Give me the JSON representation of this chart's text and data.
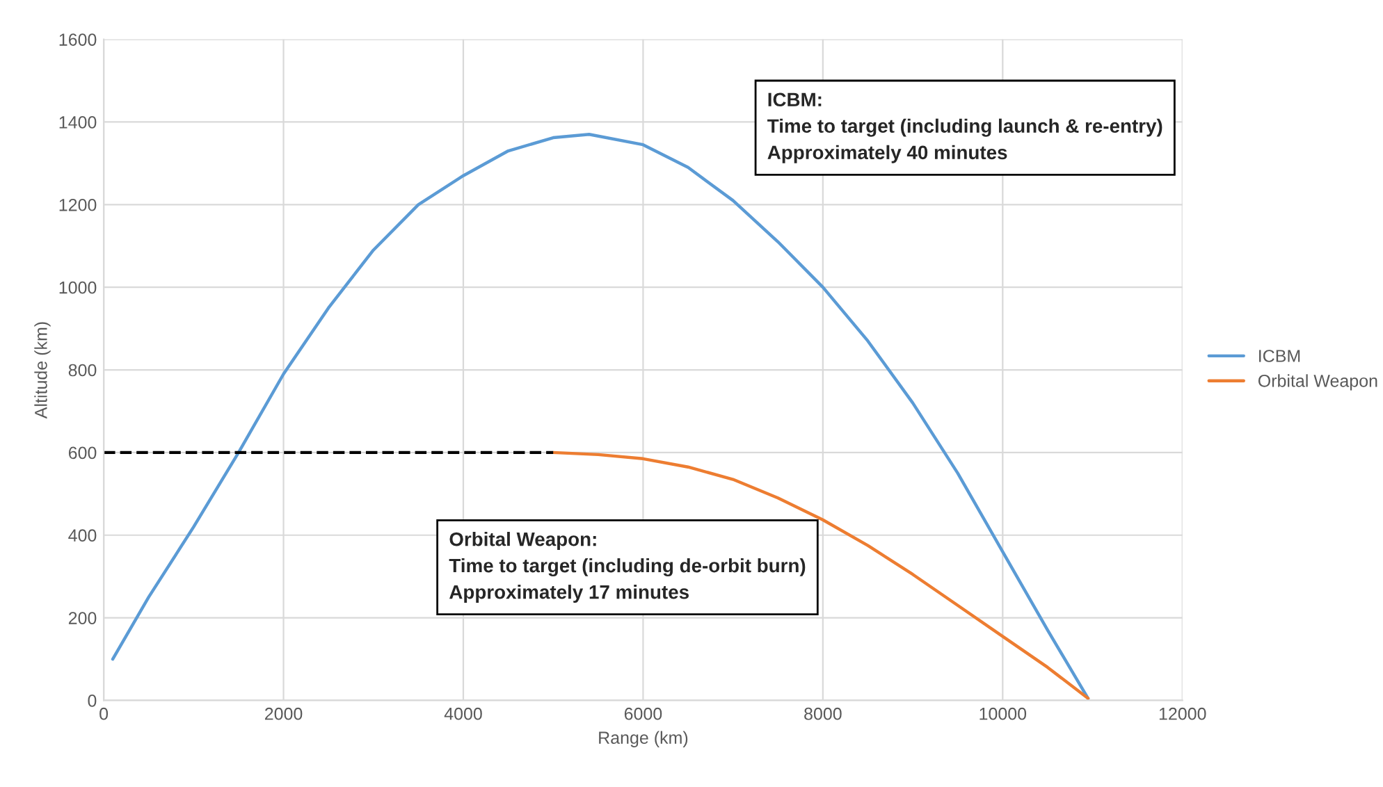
{
  "chart_data": {
    "type": "line",
    "xlabel": "Range (km)",
    "ylabel": "Altitude (km)",
    "xlim": [
      0,
      12000
    ],
    "xticks": [
      0,
      2000,
      4000,
      6000,
      8000,
      10000,
      12000
    ],
    "ylim": [
      0,
      1600
    ],
    "yticks": [
      0,
      200,
      400,
      600,
      800,
      1000,
      1200,
      1400,
      1600
    ],
    "grid": true,
    "legend": "right",
    "series": [
      {
        "name": "ICBM",
        "color": "#5b9bd5",
        "x": [
          100,
          500,
          1000,
          1500,
          2000,
          2500,
          3000,
          3500,
          4000,
          4500,
          5000,
          5400,
          6000,
          6500,
          7000,
          7500,
          8000,
          8500,
          9000,
          9500,
          10000,
          10500,
          10950
        ],
        "values": [
          100,
          250,
          420,
          600,
          790,
          950,
          1090,
          1200,
          1270,
          1330,
          1362,
          1370,
          1345,
          1290,
          1210,
          1110,
          1000,
          870,
          720,
          550,
          360,
          170,
          5
        ]
      },
      {
        "name": "Orbital Weapon",
        "color": "#ed7d31",
        "x": [
          5000,
          5500,
          6000,
          6500,
          7000,
          7500,
          8000,
          8500,
          9000,
          9500,
          10000,
          10500,
          10950
        ],
        "values": [
          600,
          595,
          585,
          565,
          535,
          490,
          437,
          375,
          305,
          230,
          155,
          80,
          5
        ]
      },
      {
        "color": "#000000",
        "line_style": "dashed",
        "x": [
          0,
          5000
        ],
        "values": [
          600,
          600
        ]
      }
    ],
    "annotations": [
      "ICBM:\nTime to target (including launch & re-entry)\nApproximately 40 minutes",
      "Orbital Weapon:\nTime to target (including de-orbit burn)\nApproximately 17 minutes"
    ]
  }
}
